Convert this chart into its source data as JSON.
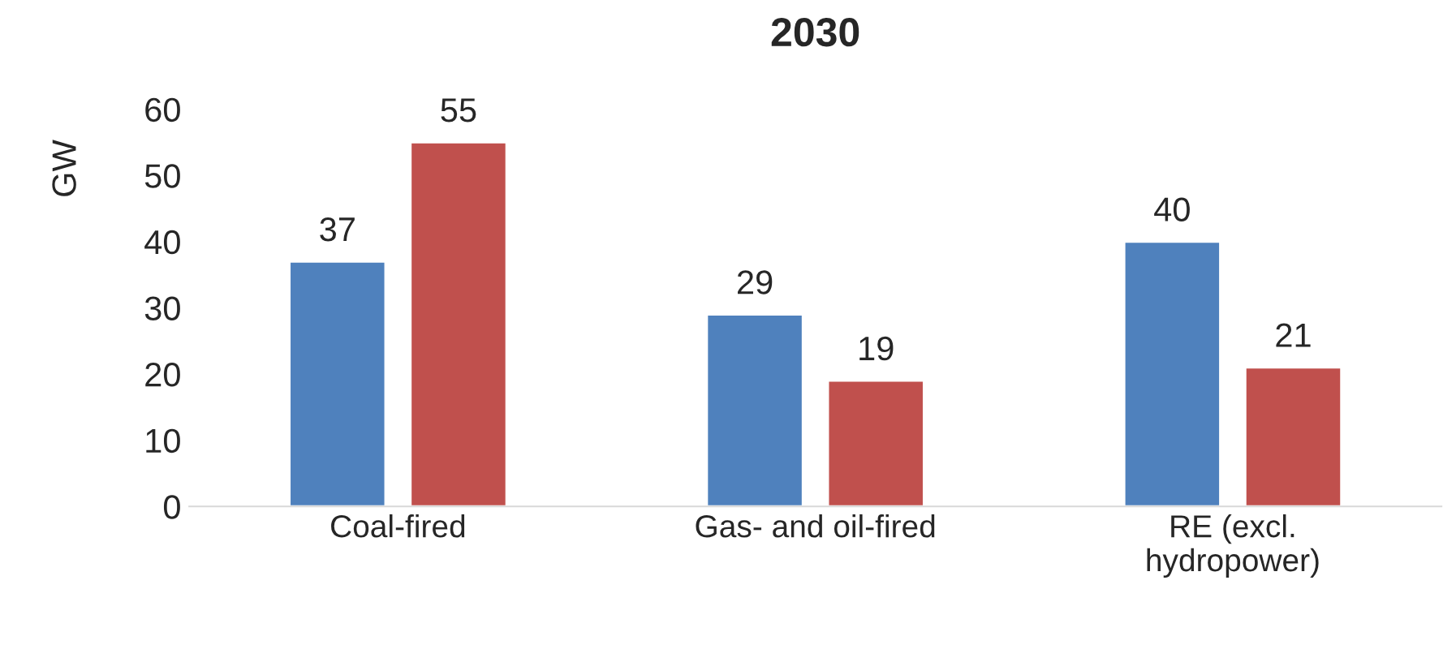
{
  "chart_data": {
    "type": "bar",
    "title": "2030",
    "ylabel": "GW",
    "categories": [
      "Coal-fired",
      "Gas- and oil-fired",
      "RE (excl.\nhydropower)"
    ],
    "series": [
      {
        "color": "#4f81bd",
        "values": [
          37,
          29,
          40
        ]
      },
      {
        "color": "#c0504d",
        "values": [
          55,
          19,
          21
        ]
      }
    ],
    "ylim": [
      0,
      60
    ],
    "yticks": [
      0,
      10,
      20,
      30,
      40,
      50,
      60
    ],
    "grid": false,
    "legend": false,
    "data_labels": true
  }
}
